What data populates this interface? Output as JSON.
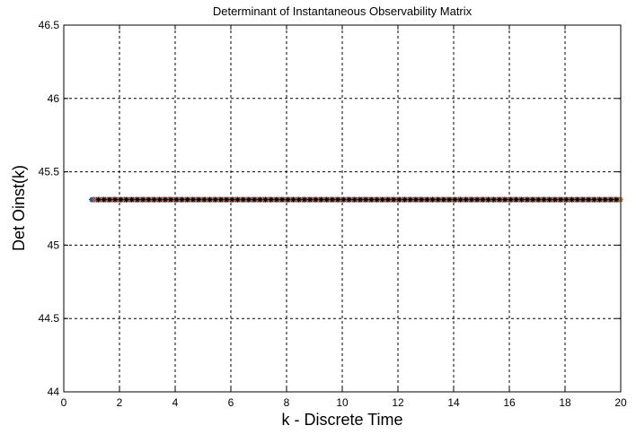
{
  "chart_data": {
    "type": "scatter",
    "title": "Determinant of Instantaneous Observability Matrix",
    "xlabel": "k - Discrete Time",
    "ylabel": "Det Oinst(k)",
    "xlim": [
      0,
      20
    ],
    "ylim": [
      44,
      46.5
    ],
    "xticks": [
      "0",
      "2",
      "4",
      "6",
      "8",
      "10",
      "12",
      "14",
      "16",
      "18",
      "20"
    ],
    "yticks": [
      "44",
      "44.5",
      "45",
      "45.5",
      "46",
      "46.5"
    ],
    "grid": true,
    "marker": "asterisk",
    "x_start": 1,
    "x_end": 20,
    "x_step": 0.2,
    "y_constant": 45.31,
    "series": [
      {
        "color": "#0000ff",
        "offset": 0.0
      },
      {
        "color": "#00a000",
        "offset": 0.04
      },
      {
        "color": "#ff0000",
        "offset": 0.08
      },
      {
        "color": "#00c8c8",
        "offset": 0.12
      },
      {
        "color": "#c800c8",
        "offset": 0.16
      },
      {
        "color": "#c8a000",
        "offset": 0.2
      },
      {
        "color": "#000000",
        "offset": 0.24
      }
    ]
  }
}
